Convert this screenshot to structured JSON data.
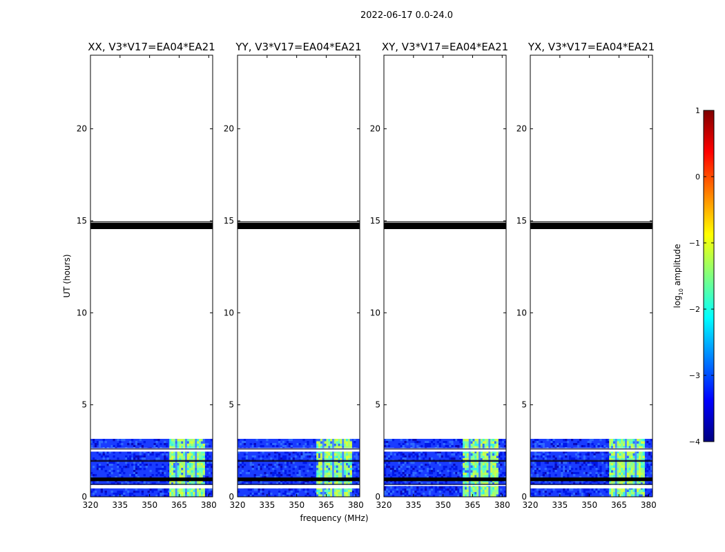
{
  "chart_data": {
    "type": "heatmap",
    "suptitle": "2022-06-17 0.0-24.0",
    "xlabel": "frequency (MHz)",
    "ylabel": "UT (hours)",
    "xlim": [
      320,
      382
    ],
    "ylim": [
      0,
      24
    ],
    "x_ticks": [
      "320",
      "335",
      "350",
      "365",
      "380"
    ],
    "x_tick_values": [
      320,
      335,
      350,
      365,
      380
    ],
    "y_ticks": [
      "0",
      "5",
      "10",
      "15",
      "20"
    ],
    "y_tick_values": [
      0,
      5,
      10,
      15,
      20
    ],
    "panels": [
      {
        "title": "XX, V3*V17=EA04*EA21"
      },
      {
        "title": "YY, V3*V17=EA04*EA21"
      },
      {
        "title": "XY, V3*V17=EA04*EA21"
      },
      {
        "title": "YX, V3*V17=EA04*EA21"
      }
    ],
    "data_time_range_hours": [
      0.0,
      3.15
    ],
    "strong_signal_freq_range_MHz": [
      360,
      378
    ],
    "flagged_time_bands_hours": [
      [
        14.55,
        14.9
      ],
      [
        0.85,
        1.05
      ]
    ],
    "colorbar": {
      "label": "log10 amplitude",
      "label_main": "log",
      "label_sub": "10",
      "label_rest": " amplitude",
      "range": [
        -4,
        1
      ],
      "ticks": [
        "1",
        "0",
        "−1",
        "−2",
        "−3",
        "−4"
      ],
      "tick_values": [
        1,
        0,
        -1,
        -2,
        -3,
        -4
      ],
      "colormap": "jet"
    }
  }
}
